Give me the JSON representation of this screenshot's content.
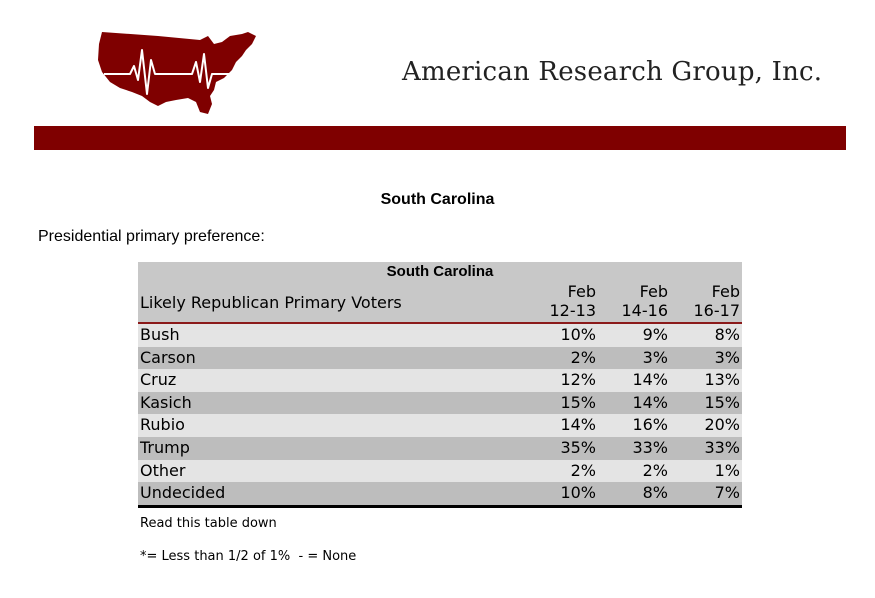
{
  "header": {
    "company_name": "American Research Group, Inc.",
    "logo_icon": "us-map-heartbeat-icon",
    "brand_color": "#7f0000"
  },
  "page_title": "South Carolina",
  "question": "Presidential primary preference:",
  "table": {
    "title": "South Carolina",
    "row_header": "Likely Republican Primary Voters",
    "columns": [
      {
        "line1": "Feb",
        "line2": "12-13"
      },
      {
        "line1": "Feb",
        "line2": "14-16"
      },
      {
        "line1": "Feb",
        "line2": "16-17"
      }
    ],
    "rows": [
      {
        "label": "Bush",
        "values": [
          "10%",
          "9%",
          "8%"
        ]
      },
      {
        "label": "Carson",
        "values": [
          "2%",
          "3%",
          "3%"
        ]
      },
      {
        "label": "Cruz",
        "values": [
          "12%",
          "14%",
          "13%"
        ]
      },
      {
        "label": "Kasich",
        "values": [
          "15%",
          "14%",
          "15%"
        ]
      },
      {
        "label": "Rubio",
        "values": [
          "14%",
          "16%",
          "20%"
        ]
      },
      {
        "label": "Trump",
        "values": [
          "35%",
          "33%",
          "33%"
        ]
      },
      {
        "label": "Other",
        "values": [
          "2%",
          "2%",
          "1%"
        ]
      },
      {
        "label": "Undecided",
        "values": [
          "10%",
          "8%",
          "7%"
        ]
      }
    ]
  },
  "notes": {
    "read_direction": "Read this table down",
    "legend": "*= Less than 1/2 of 1%  - = None"
  }
}
